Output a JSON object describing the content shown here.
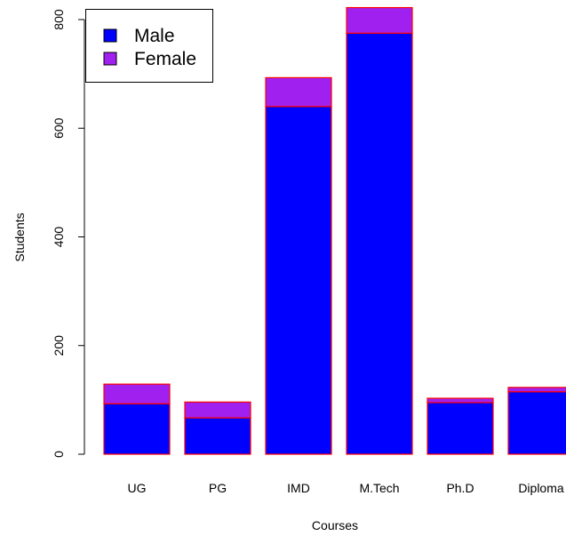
{
  "chart_data": {
    "type": "bar",
    "stacked": true,
    "categories": [
      "UG",
      "PG",
      "IMD",
      "M.Tech",
      "Ph.D",
      "Diploma"
    ],
    "series": [
      {
        "name": "Male",
        "values": [
          93,
          67,
          640,
          775,
          95,
          115
        ],
        "color": "#0000ff"
      },
      {
        "name": "Female",
        "values": [
          36,
          29,
          53,
          47,
          8,
          8
        ],
        "color": "#a020f0"
      }
    ],
    "bar_border_color": "#ff0000",
    "title": "",
    "xlabel": "Courses",
    "ylabel": "Students",
    "ylim": [
      0,
      820
    ],
    "yticks": [
      0,
      200,
      400,
      600,
      800
    ],
    "ytick_labels": [
      "0",
      "200",
      "400",
      "600",
      "800"
    ],
    "legend": {
      "placement": "top-left",
      "entries": [
        "Male",
        "Female"
      ]
    },
    "grid": false
  }
}
